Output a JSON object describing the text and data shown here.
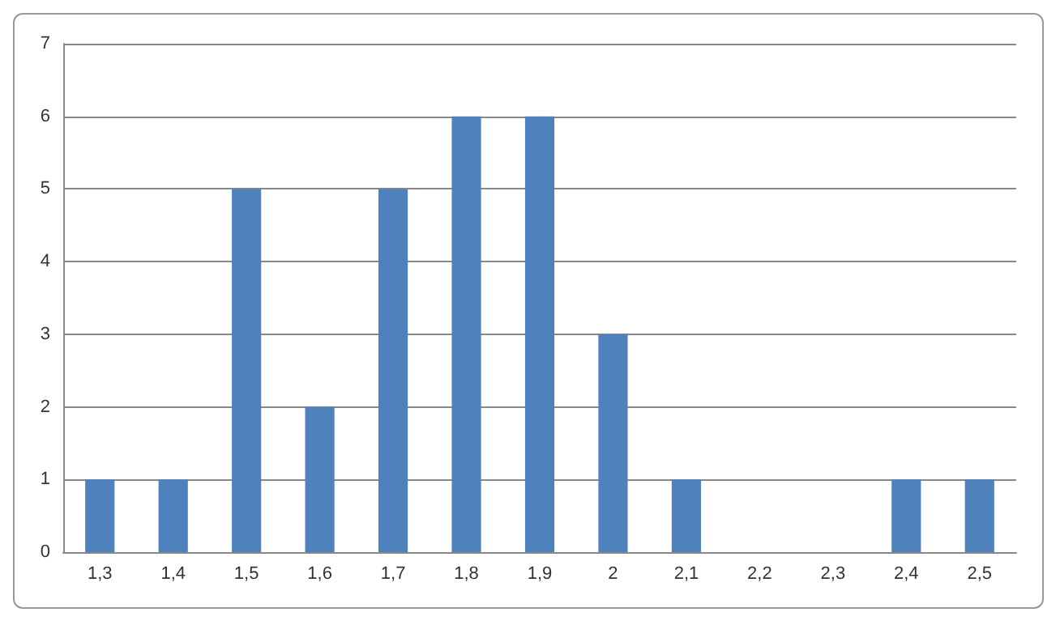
{
  "chart_data": {
    "type": "bar",
    "categories": [
      "1,3",
      "1,4",
      "1,5",
      "1,6",
      "1,7",
      "1,8",
      "1,9",
      "2",
      "2,1",
      "2,2",
      "2,3",
      "2,4",
      "2,5"
    ],
    "values": [
      1,
      1,
      5,
      2,
      5,
      6,
      6,
      3,
      1,
      0,
      0,
      1,
      1
    ],
    "color": "#4f81bd",
    "ylim": [
      0,
      7
    ],
    "yticks": [
      0,
      1,
      2,
      3,
      4,
      5,
      6,
      7
    ],
    "grid": "y"
  }
}
